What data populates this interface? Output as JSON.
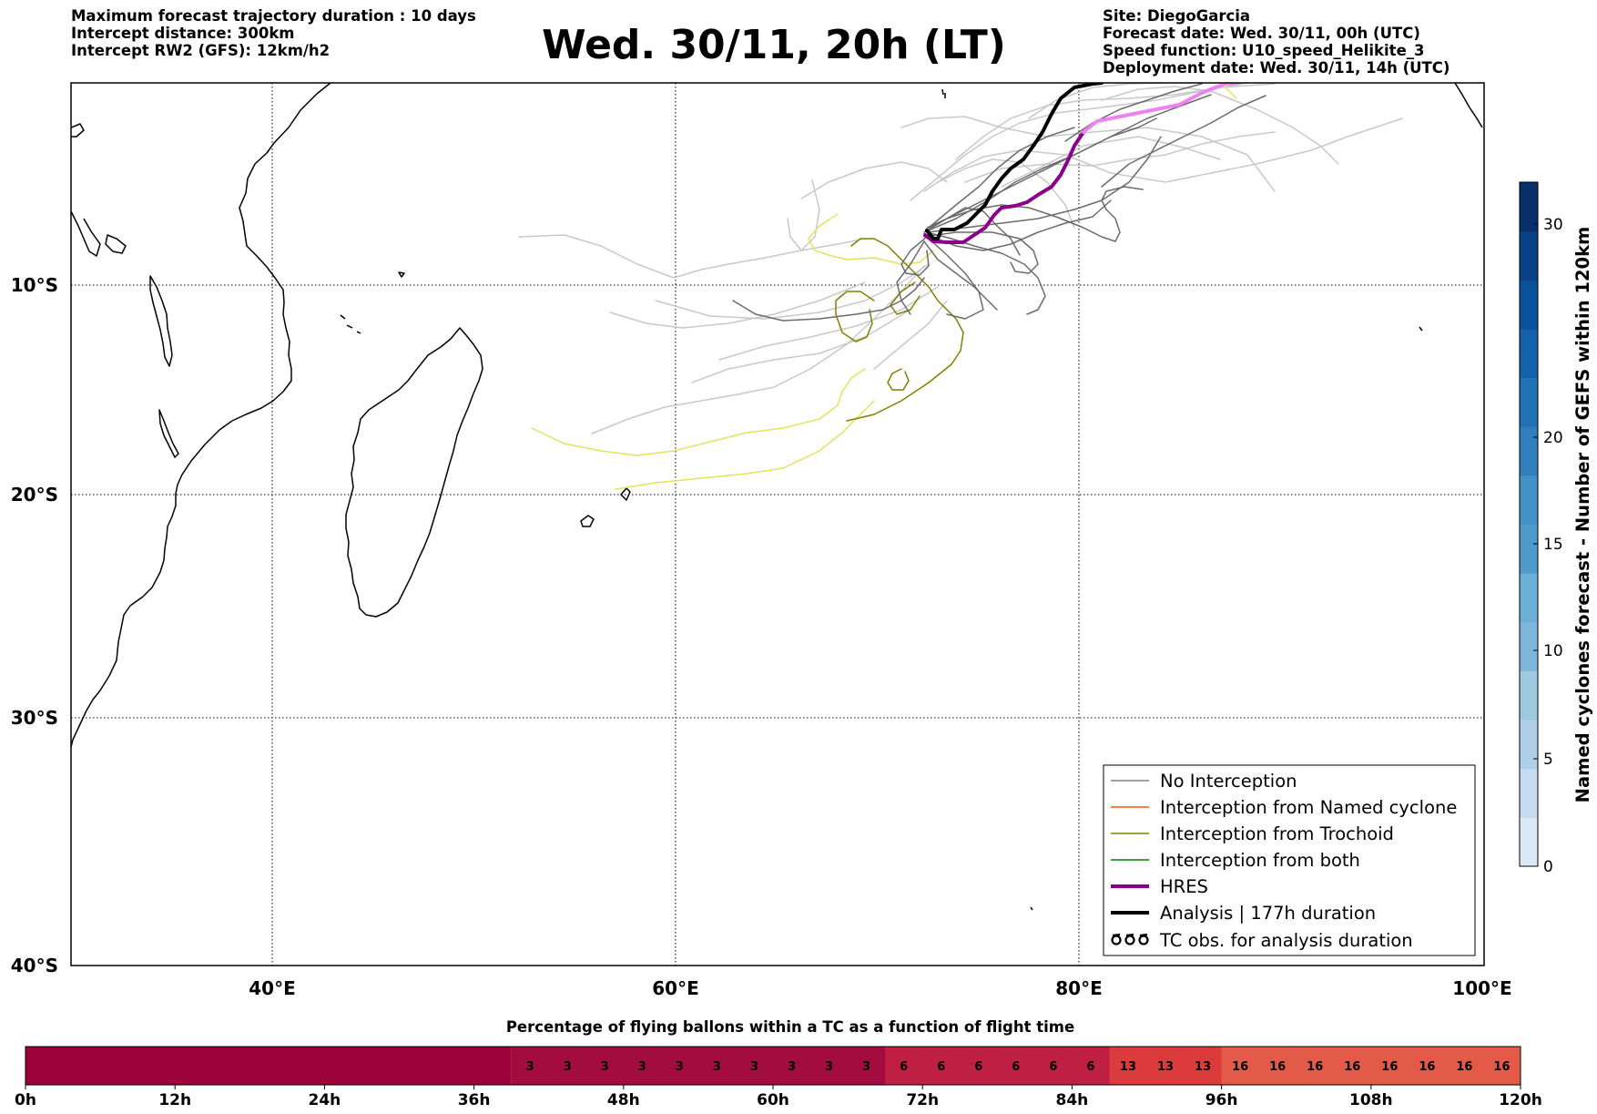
{
  "header_left": {
    "line1": "Maximum forecast trajectory duration : 10 days",
    "line2": "Intercept distance: 300km",
    "line3": "Intercept RW2 (GFS):  12km/h2"
  },
  "title": "Wed. 30/11, 20h (LT)",
  "header_right": {
    "line1": "Site: DiegoGarcia",
    "line2": "Forecast date: Wed. 30/11, 00h (UTC)",
    "line3": "Speed function: U10_speed_Helikite_3",
    "line4": "Deployment date: Wed. 30/11, 14h (UTC)"
  },
  "map": {
    "lon_labels": [
      "40°E",
      "60°E",
      "80°E",
      "100°E"
    ],
    "lat_labels": [
      "10°S",
      "20°S",
      "30°S",
      "40°S"
    ]
  },
  "legend": {
    "items": [
      {
        "label": "No Interception",
        "color": "#808080",
        "width": 1.5
      },
      {
        "label": "Interception from Named cyclone",
        "color": "#ff5500",
        "width": 1.5
      },
      {
        "label": "Interception from Trochoid",
        "color": "#808000",
        "width": 1.5
      },
      {
        "label": "Interception from both",
        "color": "#008000",
        "width": 1.5
      },
      {
        "label": "HRES",
        "color": "#8b008b",
        "width": 4
      },
      {
        "label": "Analysis | 177h duration",
        "color": "#000000",
        "width": 4
      },
      {
        "label": "TC obs. for analysis duration",
        "color": "#000000",
        "symbol": "tc"
      }
    ]
  },
  "colorbar": {
    "label": "Named cyclones forecast - Number of GEFS within 120km",
    "ticks": [
      "0",
      "5",
      "10",
      "15",
      "20",
      "30"
    ],
    "colors": [
      "#dbe9f6",
      "#c6dbef",
      "#aecfe5",
      "#9ecae1",
      "#7fb7da",
      "#6baed6",
      "#4e9acb",
      "#4292c6",
      "#2f7fbc",
      "#2171b5",
      "#1361a9",
      "#08519c",
      "#084185",
      "#08306b"
    ]
  },
  "percentage_bar": {
    "title": "Percentage of flying ballons within a TC as a function of flight time",
    "hour_labels": [
      "0h",
      "12h",
      "24h",
      "36h",
      "48h",
      "60h",
      "72h",
      "84h",
      "96h",
      "108h",
      "120h"
    ],
    "empty_hours": 39,
    "values": [
      3,
      3,
      3,
      3,
      3,
      3,
      3,
      3,
      3,
      3,
      6,
      6,
      6,
      6,
      6,
      6,
      13,
      13,
      13,
      16,
      16,
      16,
      16,
      16,
      16,
      16,
      16
    ],
    "base_color": "#9e003a",
    "value_colors": {
      "3": "#a30c3f",
      "6": "#c01f44",
      "13": "#dc3b3b",
      "16": "#e45a49"
    }
  }
}
